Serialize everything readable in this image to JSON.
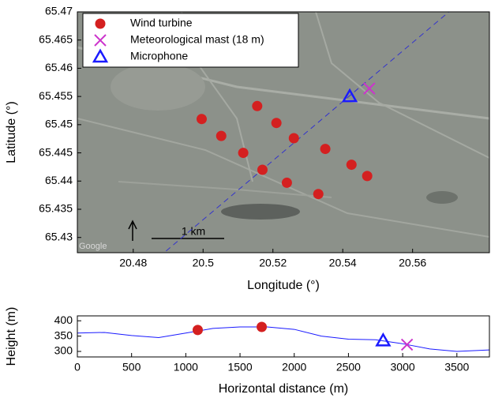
{
  "chart_data": [
    {
      "type": "scatter",
      "x_label": "Longitude (°)",
      "y_label": "Latitude (°)",
      "xlim": [
        20.464,
        20.582
      ],
      "ylim": [
        65.4273,
        65.47
      ],
      "xticks": [
        20.48,
        20.5,
        20.52,
        20.54,
        20.56
      ],
      "yticks": [
        65.43,
        65.435,
        65.44,
        65.445,
        65.45,
        65.455,
        65.46,
        65.465,
        65.47
      ],
      "series": [
        {
          "name": "Wind turbine",
          "color": "#d42020",
          "marker": "circle",
          "x": [
            20.4996,
            20.5052,
            20.5115,
            20.517,
            20.524,
            20.533,
            20.5155,
            20.521,
            20.526,
            20.535,
            20.5425,
            20.547
          ],
          "y": [
            65.451,
            65.448,
            65.445,
            65.442,
            65.4397,
            65.4377,
            65.4533,
            65.4503,
            65.4476,
            65.4457,
            65.4429,
            65.4409
          ]
        },
        {
          "name": "Meteorological mast (18 m)",
          "color": "#cc33cc",
          "marker": "x",
          "x": [
            20.5476
          ],
          "y": [
            65.4564
          ]
        },
        {
          "name": "Microphone",
          "color": "#1a1aff",
          "marker": "triangle",
          "x": [
            20.542
          ],
          "y": [
            65.455
          ]
        }
      ],
      "line": {
        "color": "#3333cc",
        "x": [
          20.4894,
          20.5704
        ],
        "y": [
          65.4276,
          65.47
        ]
      },
      "scale_label": "1 km",
      "watermark": "Google"
    },
    {
      "type": "profile",
      "x_label": "Horizontal distance (m)",
      "y_label": "Height (m)",
      "xlim": [
        0,
        3800
      ],
      "ylim": [
        282,
        416
      ],
      "xticks": [
        0,
        500,
        1000,
        1500,
        2000,
        2500,
        3000,
        3500
      ],
      "yticks": [
        300,
        350,
        400
      ],
      "profile": {
        "color": "#1a1aff",
        "x": [
          0,
          250,
          500,
          750,
          1000,
          1250,
          1500,
          1750,
          2000,
          2250,
          2500,
          2750,
          3000,
          3250,
          3500,
          3800
        ],
        "y": [
          360,
          362,
          352,
          345,
          360,
          375,
          380,
          380,
          372,
          350,
          340,
          338,
          325,
          308,
          300,
          305
        ]
      },
      "series": [
        {
          "color": "#d42020",
          "marker": "circle",
          "x": [
            1110,
            1700
          ],
          "y": [
            370,
            380
          ]
        },
        {
          "color": "#1a1aff",
          "marker": "triangle",
          "x": [
            2820
          ],
          "y": [
            335
          ]
        },
        {
          "color": "#cc33cc",
          "marker": "x",
          "x": [
            3040
          ],
          "y": [
            322
          ]
        }
      ]
    }
  ]
}
